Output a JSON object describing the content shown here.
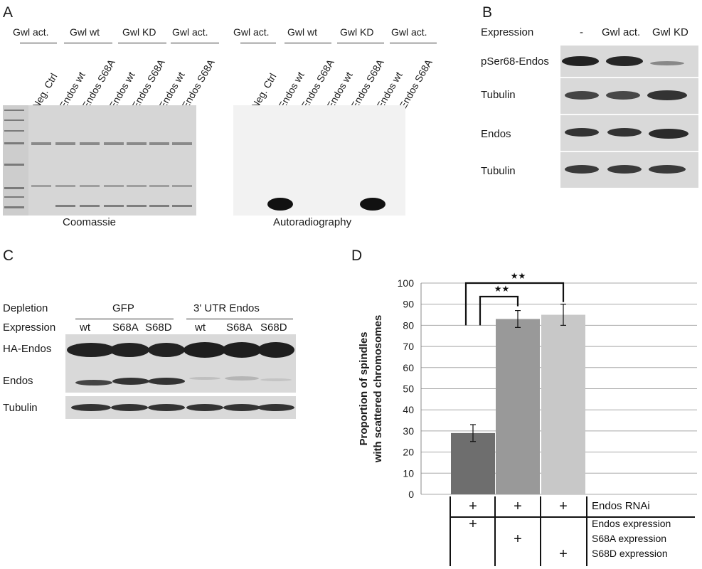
{
  "panels": {
    "A": {
      "letter": "A",
      "groups": [
        "Gwl act.",
        "Gwl wt",
        "Gwl KD",
        "Gwl act."
      ],
      "lanes": [
        "Neg. Ctrl",
        "Endos wt",
        "Endos S68A",
        "Endos wt",
        "Endos S68A",
        "Endos wt",
        "Endos S68A"
      ],
      "coomassie_caption": "Coomassie",
      "autorad_caption": "Autoradiography"
    },
    "B": {
      "letter": "B",
      "expression_label": "Expression",
      "columns": [
        "-",
        "Gwl act.",
        "Gwl KD"
      ],
      "rows": [
        "pSer68-Endos",
        "Tubulin",
        "Endos",
        "Tubulin"
      ]
    },
    "C": {
      "letter": "C",
      "depletion_label": "Depletion",
      "expression_label": "Expression",
      "groups": [
        "GFP",
        "3' UTR Endos"
      ],
      "lanes": [
        "wt",
        "S68A",
        "S68D",
        "wt",
        "S68A",
        "S68D"
      ],
      "rows": [
        "HA-Endos",
        "Endos",
        "Tubulin"
      ]
    },
    "D": {
      "letter": "D"
    }
  },
  "chart_data": {
    "type": "bar",
    "ylabel_line1": "Proportion of spindles",
    "ylabel_line2": "with scattered chromosomes",
    "ylim": [
      0,
      100
    ],
    "yticks": [
      0,
      10,
      20,
      30,
      40,
      50,
      60,
      70,
      80,
      90,
      100
    ],
    "grid": true,
    "values": [
      29,
      83,
      85
    ],
    "errors": [
      4,
      4,
      5
    ],
    "colors": [
      "#6e6e6e",
      "#999999",
      "#c8c8c8"
    ],
    "significance": [
      "★★",
      "★★"
    ],
    "table": {
      "rows": [
        {
          "label": "Endos RNAi",
          "marks": [
            "+",
            "+",
            "+"
          ]
        },
        {
          "label": "Endos expression",
          "marks": [
            "+",
            "",
            ""
          ]
        },
        {
          "label": "S68A expression",
          "marks": [
            "",
            "+",
            ""
          ]
        },
        {
          "label": "S68D expression",
          "marks": [
            "",
            "",
            "+"
          ]
        }
      ]
    }
  }
}
